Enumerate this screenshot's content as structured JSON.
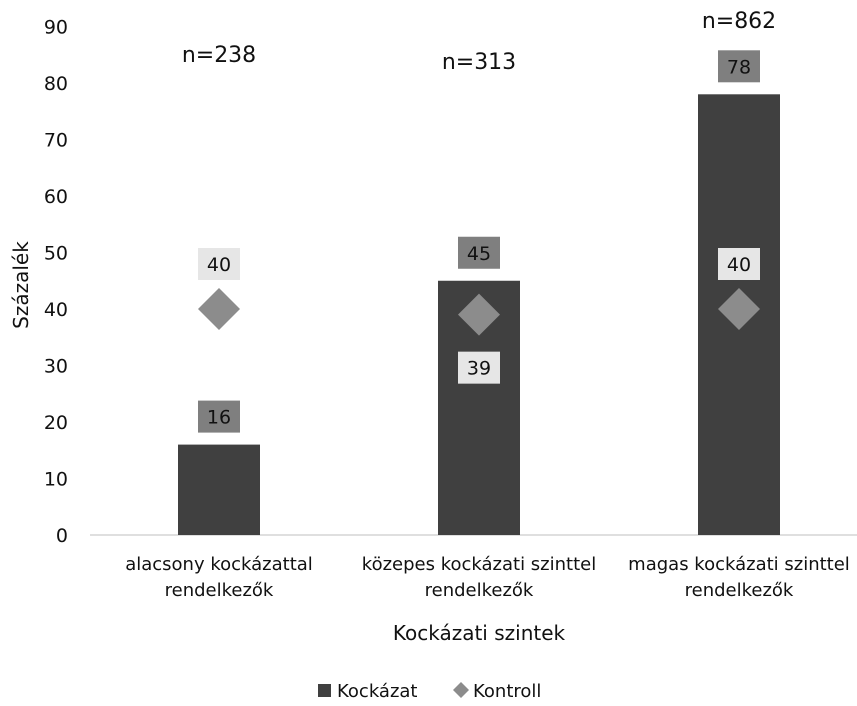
{
  "chart_data": {
    "type": "bar",
    "title": "",
    "xlabel": "Kockázati szintek",
    "ylabel": "Százalék",
    "ylim": [
      0,
      90
    ],
    "yticks": [
      0,
      10,
      20,
      30,
      40,
      50,
      60,
      70,
      80,
      90
    ],
    "categories": [
      [
        "alacsony kockázattal",
        "rendelkezők"
      ],
      [
        "közepes kockázati szinttel",
        "rendelkezők"
      ],
      [
        "magas kockázati szinttel",
        "rendelkezők"
      ]
    ],
    "sample_sizes": [
      "n=238",
      "n=313",
      "n=862"
    ],
    "series": [
      {
        "name": "Kockázat",
        "kind": "bar",
        "color": "#404040",
        "label_bg": "#7f7f7f",
        "values": [
          16,
          45,
          78
        ]
      },
      {
        "name": "Kontroll",
        "kind": "diamond",
        "color": "#8c8c8c",
        "label_bg": "#e6e6e6",
        "values": [
          40,
          39,
          40
        ]
      }
    ],
    "legend_position": "bottom",
    "grid": false
  }
}
